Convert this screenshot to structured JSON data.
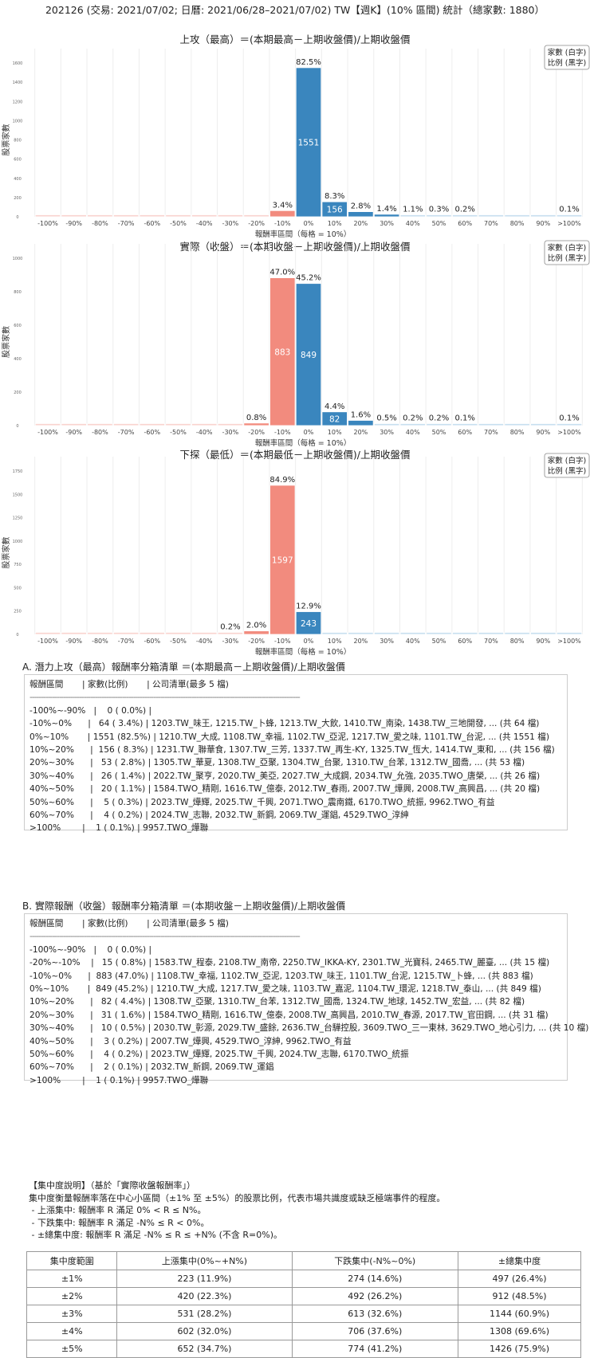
{
  "header": {
    "title": "202126 (交易: 2021/07/02; 日曆: 2021/06/28–2021/07/02) TW【週K】(10% 區間) 統計（總家數: 1880）"
  },
  "colors": {
    "negative": "#f28b7e",
    "positive": "#3a86be",
    "negative_pale": "#f9d4d0",
    "positive_pale": "#c9e0f0",
    "grid": "#eeeeee"
  },
  "chart_data": [
    {
      "type": "bar",
      "title": "上攻（最高）＝(本期最高－上期收盤價)/上期收盤價",
      "xlabel": "報酬率區間（每格 = 10%）",
      "ylabel": "股票家數",
      "legend": [
        "家數 (白字)",
        "比例 (黑字)"
      ],
      "legend_position": "top-right",
      "categories": [
        "-100%",
        "-90%",
        "-80%",
        "-70%",
        "-60%",
        "-50%",
        "-40%",
        "-30%",
        "-20%",
        "-10%",
        "0%",
        "10%",
        "20%",
        "30%",
        "40%",
        "50%",
        "60%",
        "70%",
        "80%",
        "90%",
        ">100%"
      ],
      "values": [
        0,
        0,
        0,
        0,
        0,
        0,
        0,
        0,
        0,
        64,
        1551,
        156,
        53,
        26,
        20,
        5,
        4,
        0,
        0,
        0,
        1
      ],
      "pct_labels": [
        "",
        "",
        "",
        "",
        "",
        "",
        "",
        "",
        "",
        "3.4%",
        "82.5%",
        "8.3%",
        "2.8%",
        "1.4%",
        "1.1%",
        "0.3%",
        "0.2%",
        "",
        "",
        "",
        "0.1%"
      ],
      "yticks": [
        0,
        200,
        400,
        600,
        800,
        1000,
        1200,
        1400,
        1600
      ],
      "ylim": [
        0,
        1600
      ]
    },
    {
      "type": "bar",
      "title": "實際（收盤）＝(本期收盤－上期收盤價)/上期收盤價",
      "xlabel": "報酬率區間（每格 = 10%）",
      "ylabel": "股票家數",
      "legend": [
        "家數 (白字)",
        "比例 (黑字)"
      ],
      "legend_position": "top-right",
      "categories": [
        "-100%",
        "-90%",
        "-80%",
        "-70%",
        "-60%",
        "-50%",
        "-40%",
        "-30%",
        "-20%",
        "-10%",
        "0%",
        "10%",
        "20%",
        "30%",
        "40%",
        "50%",
        "60%",
        "70%",
        "80%",
        "90%",
        ">100%"
      ],
      "values": [
        0,
        0,
        0,
        0,
        0,
        0,
        0,
        0,
        15,
        883,
        849,
        82,
        31,
        10,
        3,
        4,
        2,
        0,
        0,
        0,
        1
      ],
      "pct_labels": [
        "",
        "",
        "",
        "",
        "",
        "",
        "",
        "",
        "0.8%",
        "47.0%",
        "45.2%",
        "4.4%",
        "1.6%",
        "0.5%",
        "0.2%",
        "0.2%",
        "0.1%",
        "",
        "",
        "",
        "0.1%"
      ],
      "yticks": [
        0,
        200,
        400,
        600,
        800,
        1000
      ],
      "ylim": [
        0,
        1000
      ]
    },
    {
      "type": "bar",
      "title": "下探（最低）＝(本期最低－上期收盤價)/上期收盤價",
      "xlabel": "報酬率區間（每格 = 10%）",
      "ylabel": "股票家數",
      "legend": [
        "家數 (白字)",
        "比例 (黑字)"
      ],
      "legend_position": "top-right",
      "categories": [
        "-100%",
        "-90%",
        "-80%",
        "-70%",
        "-60%",
        "-50%",
        "-40%",
        "-30%",
        "-20%",
        "-10%",
        "0%",
        "10%",
        "20%",
        "30%",
        "40%",
        "50%",
        "60%",
        "70%",
        "80%",
        "90%",
        ">100%"
      ],
      "values": [
        0,
        0,
        0,
        0,
        0,
        0,
        0,
        3,
        37,
        1597,
        243,
        0,
        0,
        0,
        0,
        0,
        0,
        0,
        0,
        0,
        0
      ],
      "pct_labels": [
        "",
        "",
        "",
        "",
        "",
        "",
        "",
        "0.2%",
        "2.0%",
        "84.9%",
        "12.9%",
        "",
        "",
        "",
        "",
        "",
        "",
        "",
        "",
        "",
        ""
      ],
      "yticks": [
        0,
        250,
        500,
        750,
        1000,
        1250,
        1500,
        1750
      ],
      "ylim": [
        0,
        1750
      ]
    }
  ],
  "section_a": {
    "title": "A. 潛力上攻（最高）報酬率分箱清單 ＝(本期最高－上期收盤價)/上期收盤價",
    "lines": [
      "報酬區間       | 家數(比例)       | 公司清單(最多 5 檔)",
      "------------------------------------------------------------------------------------------------------------------------",
      "-100%~-90%   |    0 ( 0.0%) |",
      "-10%~0%      |   64 ( 3.4%) | 1203.TW_味王, 1215.TW_卜蜂, 1213.TW_大飲, 1410.TW_南染, 1438.TW_三地開發, ... (共 64 檔)",
      "0%~10%       | 1551 (82.5%) | 1210.TW_大成, 1108.TW_幸福, 1102.TW_亞泥, 1217.TW_愛之味, 1101.TW_台泥, ... (共 1551 檔)",
      "10%~20%      |  156 ( 8.3%) | 1231.TW_聯華食, 1307.TW_三芳, 1337.TW_再生-KY, 1325.TW_恆大, 1414.TW_東和, ... (共 156 檔)",
      "20%~30%      |   53 ( 2.8%) | 1305.TW_華夏, 1308.TW_亞聚, 1304.TW_台聚, 1310.TW_台苯, 1312.TW_國喬, ... (共 53 檔)",
      "30%~40%      |   26 ( 1.4%) | 2022.TW_聚亨, 2020.TW_美亞, 2027.TW_大成鋼, 2034.TW_允強, 2035.TWO_唐榮, ... (共 26 檔)",
      "40%~50%      |   20 ( 1.1%) | 1584.TWO_精剛, 1616.TW_億泰, 2012.TW_春雨, 2007.TW_燁興, 2008.TW_高興昌, ... (共 20 檔)",
      "50%~60%      |    5 ( 0.3%) | 2023.TW_燁輝, 2025.TW_千興, 2071.TWO_震南鐵, 6170.TWO_統振, 9962.TWO_有益",
      "60%~70%      |    4 ( 0.2%) | 2024.TW_志聯, 2032.TW_新鋼, 2069.TW_運錩, 4529.TWO_淳紳",
      ">100%        |    1 ( 0.1%) | 9957.TWO_燁聯"
    ]
  },
  "section_b": {
    "title": "B. 實際報酬（收盤）報酬率分箱清單 ＝(本期收盤－上期收盤價)/上期收盤價",
    "lines": [
      "報酬區間       | 家數(比例)       | 公司清單(最多 5 檔)",
      "------------------------------------------------------------------------------------------------------------------------",
      "-100%~-90%   |    0 ( 0.0%) |",
      "-20%~-10%    |   15 ( 0.8%) | 1583.TW_程泰, 2108.TW_南帝, 2250.TW_IKKA-KY, 2301.TW_光寶科, 2465.TW_麗臺, ... (共 15 檔)",
      "-10%~0%      |  883 (47.0%) | 1108.TW_幸福, 1102.TW_亞泥, 1203.TW_味王, 1101.TW_台泥, 1215.TW_卜蜂, ... (共 883 檔)",
      "0%~10%       |  849 (45.2%) | 1210.TW_大成, 1217.TW_愛之味, 1103.TW_嘉泥, 1104.TW_環泥, 1218.TW_泰山, ... (共 849 檔)",
      "10%~20%      |   82 ( 4.4%) | 1308.TW_亞聚, 1310.TW_台苯, 1312.TW_國喬, 1324.TW_地球, 1452.TW_宏益, ... (共 82 檔)",
      "20%~30%      |   31 ( 1.6%) | 1584.TWO_精剛, 1616.TW_億泰, 2008.TW_高興昌, 2010.TW_春源, 2017.TW_官田鋼, ... (共 31 檔)",
      "30%~40%      |   10 ( 0.5%) | 2030.TW_彰源, 2029.TW_盛餘, 2636.TW_台驊控股, 3609.TWO_三一東林, 3629.TWO_地心引力, ... (共 10 檔)",
      "40%~50%      |    3 ( 0.2%) | 2007.TW_燁興, 4529.TWO_淳紳, 9962.TWO_有益",
      "50%~60%      |    4 ( 0.2%) | 2023.TW_燁輝, 2025.TW_千興, 2024.TW_志聯, 6170.TWO_統振",
      "60%~70%      |    2 ( 0.1%) | 2032.TW_新鋼, 2069.TW_運錩",
      ">100%        |    1 ( 0.1%) | 9957.TWO_燁聯"
    ]
  },
  "concentration": {
    "lines": [
      "【集中度說明】（基於「實際收盤報酬率」）",
      "集中度衡量報酬率落在中心小區間（±1% 至 ±5%）的股票比例，代表市場共識度或缺乏極端事件的程度。",
      " - 上漲集中: 報酬率 R 滿足 0% < R ≤ N%。",
      " - 下跌集中: 報酬率 R 滿足 -N% ≤ R < 0%。",
      " - ±總集中度: 報酬率 R 滿足 -N% ≤ R ≤ +N% (不含 R=0%)。"
    ],
    "table": {
      "columns": [
        "集中度範圍",
        "上漲集中(0%~+N%)",
        "下跌集中(-N%~0%)",
        "±總集中度"
      ],
      "rows": [
        [
          "±1%",
          "223 (11.9%)",
          "274 (14.6%)",
          "497 (26.4%)"
        ],
        [
          "±2%",
          "420 (22.3%)",
          "492 (26.2%)",
          "912 (48.5%)"
        ],
        [
          "±3%",
          "531 (28.2%)",
          "613 (32.6%)",
          "1144 (60.9%)"
        ],
        [
          "±4%",
          "602 (32.0%)",
          "706 (37.6%)",
          "1308 (69.6%)"
        ],
        [
          "±5%",
          "652 (34.7%)",
          "774 (41.2%)",
          "1426 (75.9%)"
        ]
      ]
    }
  }
}
